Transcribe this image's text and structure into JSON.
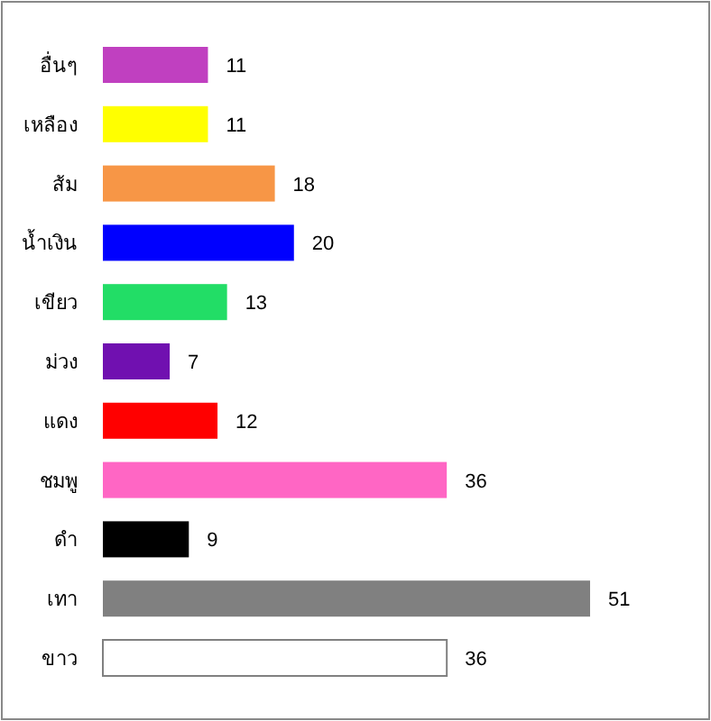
{
  "chart_data": {
    "type": "bar",
    "orientation": "horizontal",
    "categories": [
      "อื่นๆ",
      "เหลือง",
      "ส้ม",
      "น้ำเงิน",
      "เขียว",
      "ม่วง",
      "แดง",
      "ชมพู",
      "ดำ",
      "เทา",
      "ขาว"
    ],
    "values": [
      11,
      11,
      18,
      20,
      13,
      7,
      12,
      36,
      9,
      51,
      36
    ],
    "colors": [
      "#c040c0",
      "#ffff00",
      "#f79646",
      "#0000ff",
      "#22dd66",
      "#7010b0",
      "#ff0000",
      "#ff66c4",
      "#000000",
      "#808080",
      "#ffffff"
    ],
    "data_labels": true
  }
}
